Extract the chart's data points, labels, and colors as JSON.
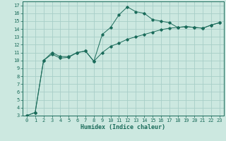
{
  "xlabel": "Humidex (Indice chaleur)",
  "background_color": "#cce8e0",
  "grid_color": "#a8cec8",
  "line_color": "#1a6b5a",
  "xlim": [
    -0.5,
    23.5
  ],
  "ylim": [
    3,
    17.5
  ],
  "xticks": [
    0,
    1,
    2,
    3,
    4,
    5,
    6,
    7,
    8,
    9,
    10,
    11,
    12,
    13,
    14,
    15,
    16,
    17,
    18,
    19,
    20,
    21,
    22,
    23
  ],
  "yticks": [
    3,
    4,
    5,
    6,
    7,
    8,
    9,
    10,
    11,
    12,
    13,
    14,
    15,
    16,
    17
  ],
  "series1_x": [
    0,
    1,
    2,
    3,
    4,
    5,
    6,
    7,
    8,
    9,
    10,
    11,
    12,
    13,
    14,
    15,
    16,
    17,
    18,
    19,
    20,
    21,
    22,
    23
  ],
  "series1_y": [
    3.0,
    3.4,
    10.0,
    11.0,
    10.5,
    10.5,
    11.0,
    11.2,
    9.9,
    13.3,
    14.2,
    15.8,
    16.8,
    16.2,
    16.0,
    15.2,
    15.0,
    14.8,
    14.2,
    14.3,
    14.2,
    14.1,
    14.5,
    14.8
  ],
  "series2_x": [
    0,
    1,
    2,
    3,
    4,
    5,
    6,
    7,
    8,
    9,
    10,
    11,
    12,
    13,
    14,
    15,
    16,
    17,
    18,
    19,
    20,
    21,
    22,
    23
  ],
  "series2_y": [
    3.0,
    3.4,
    10.0,
    10.8,
    10.3,
    10.4,
    11.0,
    11.2,
    9.9,
    11.0,
    11.8,
    12.2,
    12.7,
    13.0,
    13.3,
    13.6,
    13.9,
    14.1,
    14.2,
    14.3,
    14.2,
    14.1,
    14.5,
    14.8
  ],
  "tick_fontsize": 5,
  "xlabel_fontsize": 6,
  "linewidth": 0.7,
  "markersize": 1.8
}
